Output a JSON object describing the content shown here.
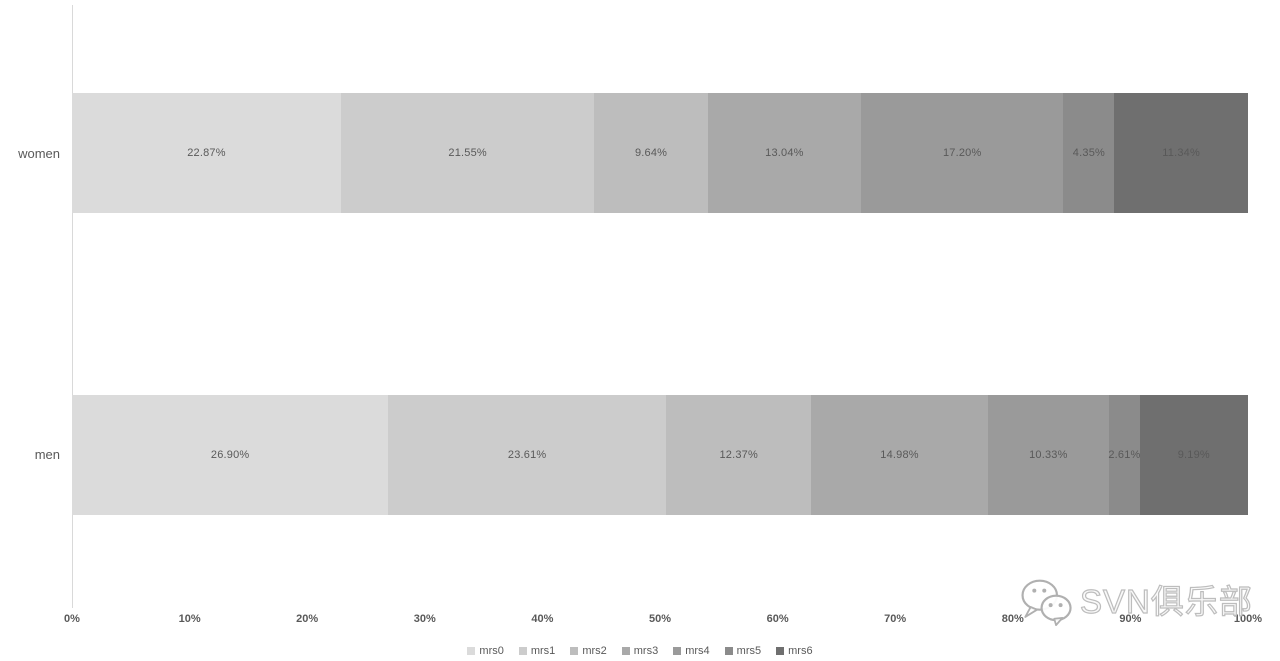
{
  "chart_data": {
    "type": "bar",
    "orientation": "horizontal",
    "stacked": true,
    "title": "",
    "xlabel": "",
    "ylabel": "",
    "xlim": [
      0,
      100
    ],
    "grid": false,
    "legend_position": "bottom",
    "data_label_format": "0.00%",
    "label_color": "#595959",
    "axis_line_color": "#d9d9d9",
    "categories": [
      "women",
      "men"
    ],
    "x_ticks": [
      "0%",
      "10%",
      "20%",
      "30%",
      "40%",
      "50%",
      "60%",
      "70%",
      "80%",
      "90%",
      "100%"
    ],
    "series": [
      {
        "name": "mrs0",
        "color": "#dbdbdb",
        "values": [
          22.87,
          26.9
        ]
      },
      {
        "name": "mrs1",
        "color": "#cccccc",
        "values": [
          21.55,
          23.61
        ]
      },
      {
        "name": "mrs2",
        "color": "#bdbdbd",
        "values": [
          9.64,
          12.37
        ]
      },
      {
        "name": "mrs3",
        "color": "#a9a9a9",
        "values": [
          13.04,
          14.98
        ]
      },
      {
        "name": "mrs4",
        "color": "#9a9a9a",
        "values": [
          17.2,
          10.33
        ]
      },
      {
        "name": "mrs5",
        "color": "#8b8b8b",
        "values": [
          4.35,
          2.61
        ]
      },
      {
        "name": "mrs6",
        "color": "#6f6f6f",
        "values": [
          11.34,
          9.19
        ]
      }
    ]
  },
  "watermark": {
    "text": "SVN俱乐部",
    "icon": "wechat-logo-icon"
  }
}
